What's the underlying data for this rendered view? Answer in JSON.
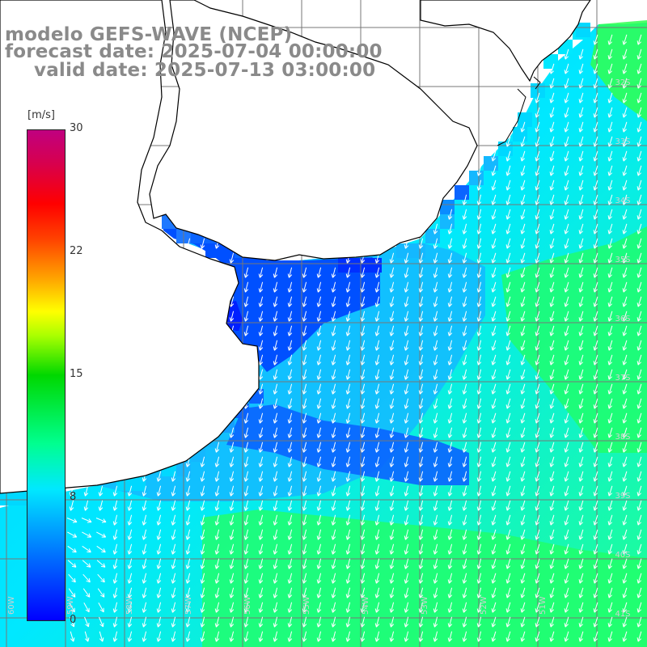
{
  "header": {
    "title": "modelo GEFS-WAVE (NCEP)",
    "forecast": "forecast date: 2025-07-04 00:00:00",
    "valid": "valid date: 2025-07-13 03:00:00"
  },
  "colorbar": {
    "unit": "[m/s]",
    "ticks": [
      "30",
      "22",
      "15",
      "8",
      "0"
    ],
    "tick_values": [
      30,
      22,
      15,
      8,
      0
    ],
    "colors": [
      "#0000ff",
      "#0078ff",
      "#00e8ff",
      "#00ff90",
      "#00d800",
      "#a8ff00",
      "#ffff00",
      "#ffa000",
      "#ff4000",
      "#ff0000",
      "#d8004c",
      "#c00080"
    ]
  },
  "lat_labels": [
    "32S",
    "33S",
    "34S",
    "35S",
    "36S",
    "37S",
    "38S",
    "39S",
    "40S",
    "41S"
  ],
  "lon_labels": [
    "60W",
    "59W",
    "58W",
    "57W",
    "56W",
    "55W",
    "54W",
    "53W",
    "52W",
    "51W"
  ],
  "field": {
    "variable": "wind speed",
    "unit": "m/s",
    "range": [
      0,
      30
    ],
    "typical_values": {
      "nearshore_inner_estuary": 3,
      "shelf": 8,
      "open_ocean_south": 12
    },
    "arrow_direction": "mostly toward south / south-southwest",
    "colors": {
      "land": "#ffffff",
      "coast": "#000000",
      "grid": "#777777",
      "arrow": "#ffffff"
    }
  }
}
